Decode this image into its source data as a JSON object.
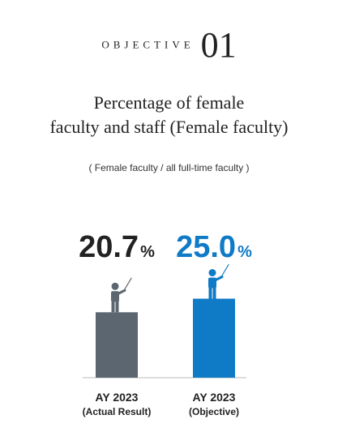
{
  "header": {
    "objective_label": "OBJECTIVE",
    "objective_number": "01",
    "title_line1": "Percentage of female",
    "title_line2": "faculty and staff (Female faculty)",
    "subtitle": "( Female faculty / all full-time faculty )"
  },
  "chart_data": {
    "type": "bar",
    "categories": [
      "AY 2023\n(Actual Result)",
      "AY 2023\n(Objective)"
    ],
    "values": [
      20.7,
      25.0
    ],
    "value_labels": [
      "20.7",
      "25.0"
    ],
    "unit": "%",
    "colors": [
      "#5b6670",
      "#0f7ac6"
    ],
    "value_label_colors": [
      "#222222",
      "#0f7ac6"
    ],
    "icon": "teacher-with-pointer-icon",
    "axis_color": "#bbbbbb"
  }
}
